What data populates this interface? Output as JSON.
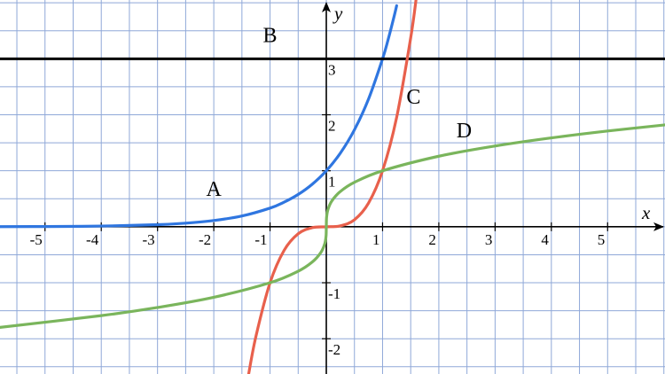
{
  "chart_data": {
    "type": "function-plot",
    "xlim": [
      -5.8,
      6.02
    ],
    "ylim": [
      -2.63,
      4.05
    ],
    "xticks": [
      -5,
      -4,
      -3,
      -2,
      -1,
      1,
      2,
      3,
      4,
      5
    ],
    "yticks": [
      -2,
      -1,
      1,
      2,
      3
    ],
    "x_label": "x",
    "y_label": "y",
    "grid": true,
    "grid_color": "#8fa8d8",
    "series": [
      {
        "name": "A",
        "color": "#2f76e0",
        "x": [
          -5.8,
          -5,
          -4,
          -3,
          -2.5,
          -2,
          -1.5,
          -1,
          -0.75,
          -0.5,
          -0.25,
          0,
          0.25,
          0.5,
          0.75,
          1,
          1.1,
          1.2,
          1.25
        ],
        "values": [
          0.0017,
          0.0041,
          0.0123,
          0.037,
          0.064,
          0.111,
          0.192,
          0.333,
          0.439,
          0.577,
          0.76,
          1,
          1.316,
          1.732,
          2.28,
          3,
          3.348,
          3.737,
          3.948
        ]
      },
      {
        "name": "B",
        "color": "#000000",
        "x": [
          -5.8,
          6.02
        ],
        "values": [
          3,
          3
        ]
      },
      {
        "name": "C",
        "color": "#e8604c",
        "x": [
          -1.38,
          -1.25,
          -1,
          -0.75,
          -0.5,
          -0.25,
          0,
          0.25,
          0.5,
          0.75,
          1,
          1.25,
          1.5,
          1.6
        ],
        "values": [
          -2.628,
          -1.953,
          -1,
          -0.422,
          -0.125,
          -0.016,
          0,
          0.016,
          0.125,
          0.422,
          1,
          1.953,
          3.375,
          4.096
        ]
      },
      {
        "name": "D",
        "color": "#7ab55c",
        "x": [
          -5.8,
          -4,
          -3,
          -2,
          -1,
          -0.5,
          -0.25,
          -0.1,
          -0.03,
          -0.005,
          0,
          0.005,
          0.03,
          0.1,
          0.25,
          0.5,
          1,
          2,
          3,
          4,
          5,
          6.02
        ],
        "values": [
          -1.797,
          -1.587,
          -1.442,
          -1.26,
          -1,
          -0.794,
          -0.63,
          -0.464,
          -0.311,
          -0.171,
          0,
          0.171,
          0.311,
          0.464,
          0.63,
          0.794,
          1,
          1.26,
          1.442,
          1.587,
          1.71,
          1.819
        ]
      }
    ]
  }
}
